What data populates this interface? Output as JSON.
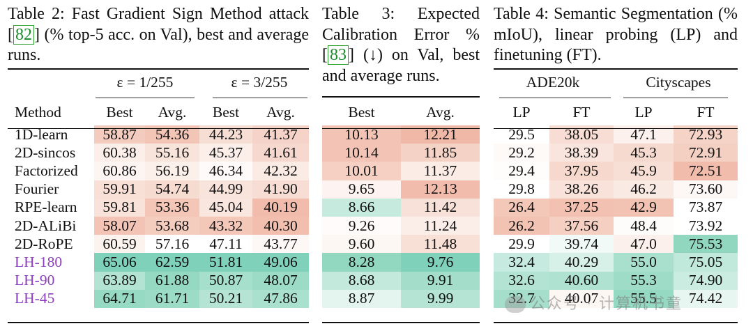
{
  "table2": {
    "caption_pre": "Table 2: Fast Gradient Sign Method attack ",
    "ref": "82",
    "caption_post": " (% top-5 acc. on Val), best and average runs.",
    "group_headers": [
      "ε = 1/255",
      "ε = 3/255"
    ],
    "columns": [
      "Method",
      "Best",
      "Avg.",
      "Best",
      "Avg."
    ],
    "rows": [
      {
        "method": "1D-learn",
        "values": [
          "58.87",
          "54.36",
          "44.23",
          "41.37"
        ]
      },
      {
        "method": "2D-sincos",
        "values": [
          "60.38",
          "55.16",
          "45.37",
          "41.61"
        ]
      },
      {
        "method": "Factorized",
        "values": [
          "60.86",
          "56.19",
          "46.34",
          "42.32"
        ]
      },
      {
        "method": "Fourier",
        "values": [
          "59.91",
          "54.74",
          "44.99",
          "41.90"
        ]
      },
      {
        "method": "RPE-learn",
        "values": [
          "59.81",
          "53.36",
          "45.04",
          "40.19"
        ]
      },
      {
        "method": "2D-ALiBi",
        "values": [
          "58.07",
          "53.68",
          "43.32",
          "40.30"
        ]
      },
      {
        "method": "2D-RoPE",
        "values": [
          "60.59",
          "57.16",
          "47.11",
          "43.77"
        ]
      },
      {
        "method": "LH-180",
        "values": [
          "65.06",
          "62.59",
          "51.81",
          "49.06"
        ]
      },
      {
        "method": "LH-90",
        "values": [
          "63.89",
          "61.88",
          "50.87",
          "48.07"
        ]
      },
      {
        "method": "LH-45",
        "values": [
          "64.71",
          "61.71",
          "50.21",
          "47.86"
        ]
      }
    ],
    "colors": [
      [
        "#f4ccbf",
        "#f3c5b7",
        "#f7ded5",
        "#f5d3c8"
      ],
      [
        "#fcefea",
        "#f9e4dc",
        "#fcefea",
        "#f6d8ce"
      ],
      [
        "#fdf5f2",
        "#fcf0eb",
        "#fefafa",
        "#fbebe5"
      ],
      [
        "#f8e0d7",
        "#f6dbd1",
        "#f9e4dc",
        "#f7ddd3"
      ],
      [
        "#f8e2d9",
        "#f3c6b8",
        "#f9e6de",
        "#f1bcab"
      ],
      [
        "#f3c4b5",
        "#f4cdbf",
        "#f3c8b9",
        "#f2bfae"
      ],
      [
        "#fcf3ef",
        "#ffffff",
        "#ffffff",
        "#fdf7f5"
      ],
      [
        "#7fd2b9",
        "#7fd2b9",
        "#7fd2b9",
        "#7fd2b9"
      ],
      [
        "#b3e3d3",
        "#95d9c3",
        "#a6dfcc",
        "#9cdbc6"
      ],
      [
        "#97dac4",
        "#9cdbc6",
        "#b5e4d4",
        "#a9e0ce"
      ]
    ]
  },
  "table3": {
    "caption_pre": "Table 3: Expected Calibration Error % ",
    "ref": "83",
    "caption_post": " (↓) on Val, best and average runs.",
    "columns": [
      "Best",
      "Avg."
    ],
    "rows": [
      [
        "10.13",
        "12.21"
      ],
      [
        "10.14",
        "11.85"
      ],
      [
        "10.01",
        "11.37"
      ],
      [
        "9.65",
        "12.13"
      ],
      [
        "8.66",
        "11.42"
      ],
      [
        "9.26",
        "11.24"
      ],
      [
        "9.60",
        "11.48"
      ],
      [
        "8.28",
        "9.76"
      ],
      [
        "8.68",
        "9.91"
      ],
      [
        "8.87",
        "9.99"
      ]
    ],
    "colors": [
      [
        "#f3c4b5",
        "#f0b8a6"
      ],
      [
        "#f3c4b5",
        "#f5d2c6"
      ],
      [
        "#f5d0c3",
        "#fbece6"
      ],
      [
        "#fdf4f1",
        "#f1bcab"
      ],
      [
        "#c7eadf",
        "#f8e1d8"
      ],
      [
        "#fefbfa",
        "#fbede7"
      ],
      [
        "#fdf7f4",
        "#f8e0d7"
      ],
      [
        "#92d8c1",
        "#7fd2b9"
      ],
      [
        "#c3e9dc",
        "#a4decb"
      ],
      [
        "#e4f5ef",
        "#b5e4d4"
      ]
    ]
  },
  "table4": {
    "caption": "Table 4: Semantic Segmentation (% mIoU), linear probing (LP) and finetuning (FT).",
    "group_headers": [
      "ADE20k",
      "Cityscapes"
    ],
    "columns": [
      "LP",
      "FT",
      "LP",
      "FT"
    ],
    "rows": [
      [
        "29.5",
        "38.05",
        "47.1",
        "72.93"
      ],
      [
        "29.2",
        "38.39",
        "45.3",
        "72.91"
      ],
      [
        "29.4",
        "37.95",
        "45.9",
        "72.51"
      ],
      [
        "29.8",
        "38.26",
        "46.2",
        "73.60"
      ],
      [
        "26.4",
        "37.25",
        "42.9",
        "73.87"
      ],
      [
        "26.2",
        "37.56",
        "48.4",
        "73.92"
      ],
      [
        "29.9",
        "39.74",
        "47.0",
        "75.53"
      ],
      [
        "32.4",
        "40.29",
        "55.0",
        "75.05"
      ],
      [
        "32.6",
        "40.60",
        "55.3",
        "74.90"
      ],
      [
        "32.7",
        "40.07",
        "55.5",
        "74.42"
      ]
    ],
    "colors": [
      [
        "#ffffff",
        "#f7ddd3",
        "#fcf1ed",
        "#f5d3c7"
      ],
      [
        "#fefaf8",
        "#f9e5dd",
        "#f6d9cf",
        "#f4d0c3"
      ],
      [
        "#fffdfc",
        "#f6d8cd",
        "#f8dfd6",
        "#f1bcab"
      ],
      [
        "#ffffff",
        "#f8e2da",
        "#faeae4",
        "#fdf8f6"
      ],
      [
        "#f3c8b9",
        "#f2c1b1",
        "#f2c2b2",
        "#ffffff"
      ],
      [
        "#f2c2b2",
        "#f4cfc2",
        "#fefcfb",
        "#ffffff"
      ],
      [
        "#ffffff",
        "#f1faf6",
        "#fcf0ec",
        "#91d7c0"
      ],
      [
        "#c6eadf",
        "#d8f1e8",
        "#a8e0cd",
        "#c0e8db"
      ],
      [
        "#b3e3d3",
        "#b0e2d2",
        "#9fdcc8",
        "#cbece1"
      ],
      [
        "#a5decb",
        "#fdf7f4",
        "#96d9c3",
        "#e8f6f1"
      ]
    ]
  },
  "watermark": "公众号 · 计算机书童"
}
